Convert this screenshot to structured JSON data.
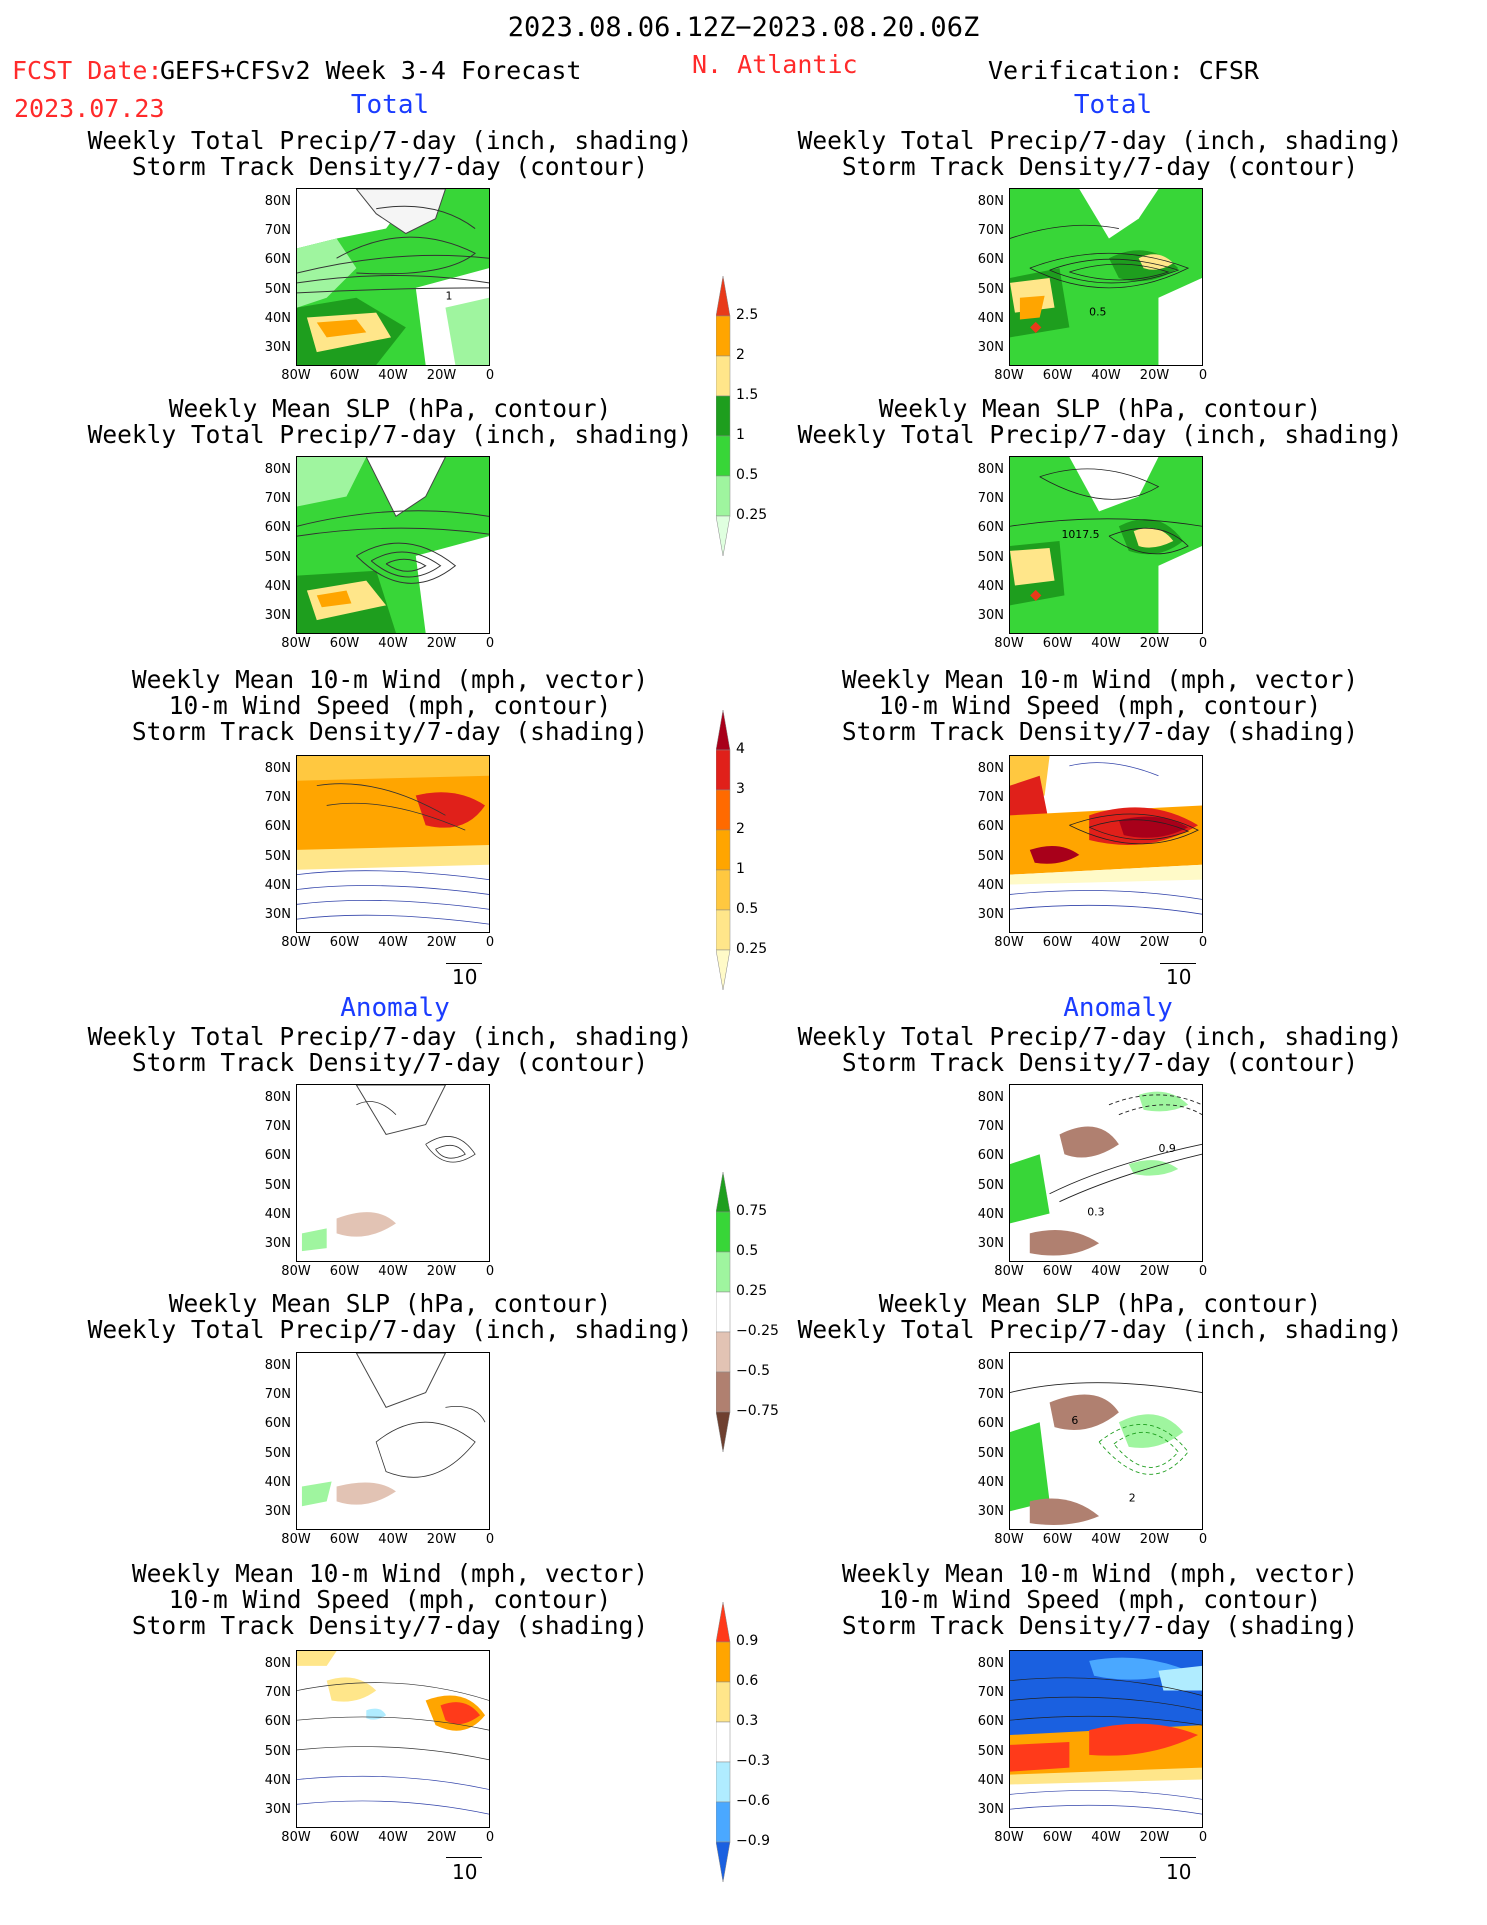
{
  "header": {
    "time_range": "2023.08.06.12Z−2023.08.20.06Z",
    "fcst_label": "FCST Date:",
    "fcst_date": "2023.07.23",
    "model": "GEFS+CFSv2 Week 3-4 Forecast",
    "region": "N. Atlantic",
    "verification": "Verification: CFSR"
  },
  "sections": {
    "total": "Total",
    "anomaly": "Anomaly"
  },
  "titles": {
    "precip_storm": [
      "Weekly Total Precip/7-day (inch, shading)",
      "Storm Track Density/7-day (contour)"
    ],
    "slp_precip": [
      "Weekly Mean SLP (hPa, contour)",
      "Weekly Total Precip/7-day (inch, shading)"
    ],
    "wind_storm": [
      "Weekly Mean 10-m Wind (mph, vector)",
      "10-m Wind Speed (mph, contour)",
      "Storm Track Density/7-day (shading)"
    ]
  },
  "axes": {
    "lat": [
      "80N",
      "70N",
      "60N",
      "50N",
      "40N",
      "30N"
    ],
    "lon": [
      "80W",
      "60W",
      "40W",
      "20W",
      "0"
    ]
  },
  "contour_labels": {
    "p1_right": "1",
    "p2_right": "0.5",
    "p5_right": "1017.5",
    "p7_r_a": "0.9",
    "p7_r_b": "0.3",
    "p8_r_a": "2",
    "p8_r_b": "6"
  },
  "vector_ref": "10",
  "colorbars": {
    "precip_total": {
      "labels": [
        "2.5",
        "2",
        "1.5",
        "1",
        "0.5",
        "0.25"
      ],
      "colors": [
        "#e83a1a",
        "#ffa500",
        "#ffe68a",
        "#1e9e1e",
        "#38d638",
        "#9ff59f",
        "#dfffdf"
      ]
    },
    "storm_total": {
      "labels": [
        "4",
        "3",
        "2",
        "1",
        "0.5",
        "0.25"
      ],
      "colors": [
        "#a8001a",
        "#e0201a",
        "#ff6a00",
        "#ffa500",
        "#ffc840",
        "#ffe68a",
        "#fffac8"
      ]
    },
    "precip_anom": {
      "labels": [
        "0.75",
        "0.5",
        "0.25",
        "−0.25",
        "−0.5",
        "−0.75"
      ],
      "colors": [
        "#1e9e1e",
        "#38d638",
        "#9ff59f",
        "#ffffff",
        "#e2c3b4",
        "#b08070",
        "#6e4030"
      ]
    },
    "storm_anom": {
      "labels": [
        "0.9",
        "0.6",
        "0.3",
        "−0.3",
        "−0.6",
        "−0.9"
      ],
      "colors": [
        "#ff3a1a",
        "#ffa500",
        "#ffe68a",
        "#ffffff",
        "#b0ecff",
        "#4aa8ff",
        "#1a60e0"
      ]
    }
  }
}
